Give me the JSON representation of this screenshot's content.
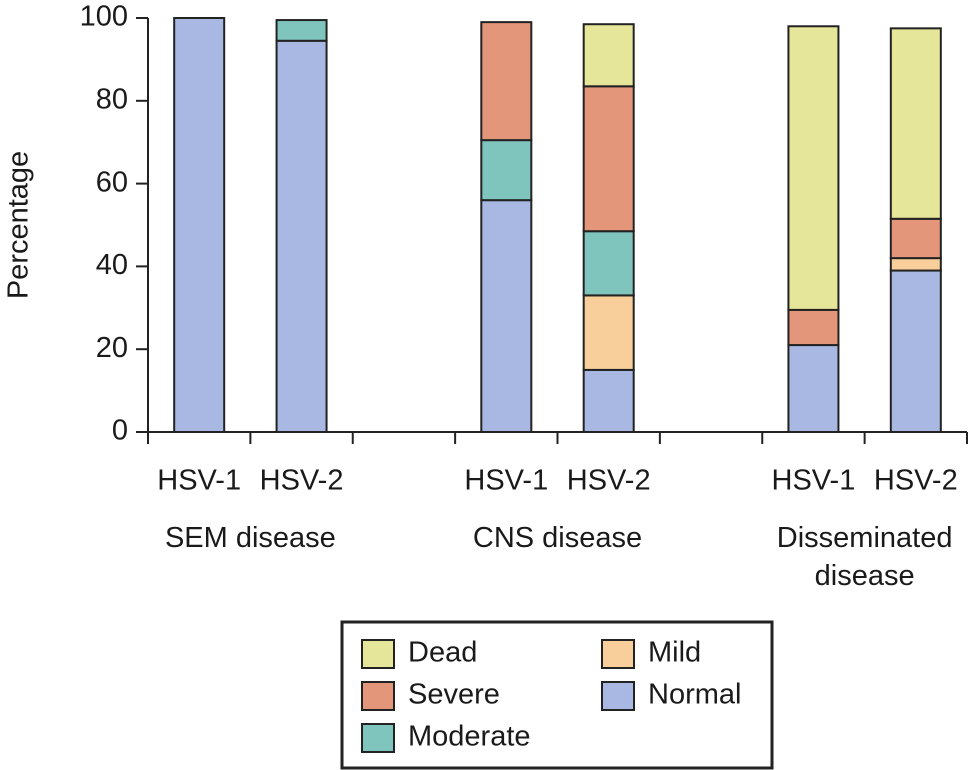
{
  "chart_data": {
    "type": "stacked_bar",
    "y_label": "Percentage",
    "categories": [
      "HSV-1",
      "HSV-2",
      null,
      "HSV-1",
      "HSV-2",
      null,
      "HSV-1",
      "HSV-2"
    ],
    "groups": [
      {
        "name": "SEM disease",
        "span": [
          0,
          1
        ]
      },
      {
        "name": "CNS disease",
        "span": [
          3,
          4
        ]
      },
      {
        "name": "Disseminated disease",
        "span": [
          6,
          7
        ]
      }
    ],
    "series": [
      {
        "name": "Normal",
        "color": "#a8b8e2",
        "values": [
          100,
          94.5,
          null,
          56,
          15,
          null,
          21,
          39
        ]
      },
      {
        "name": "Mild",
        "color": "#f8cf9a",
        "values": [
          0,
          0,
          null,
          0,
          18,
          null,
          0,
          3
        ]
      },
      {
        "name": "Moderate",
        "color": "#80c5bd",
        "values": [
          0,
          5,
          null,
          14.5,
          15.5,
          null,
          0,
          0
        ]
      },
      {
        "name": "Severe",
        "color": "#e4967b",
        "values": [
          0,
          0,
          null,
          28.5,
          35,
          null,
          8.5,
          9.5
        ]
      },
      {
        "name": "Dead",
        "color": "#e6e69b",
        "values": [
          0,
          0,
          null,
          0,
          15,
          null,
          68.5,
          46
        ]
      }
    ],
    "ylim": [
      0,
      100
    ],
    "yticks": [
      0,
      20,
      40,
      60,
      80,
      100
    ]
  }
}
